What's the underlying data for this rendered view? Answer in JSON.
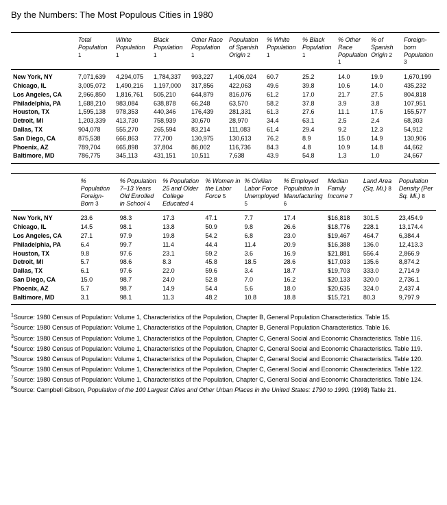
{
  "title": "By the Numbers: The Most Populous Cities in 1980",
  "table1": {
    "colWidths": [
      "95",
      "55",
      "55",
      "55",
      "55",
      "55",
      "52",
      "52",
      "48",
      "48",
      "55"
    ],
    "headers": [
      "",
      "Total Population <span class='sup-in-header'>1</span>",
      "White Population <span class='sup-in-header'>1</span>",
      "Black Population <span class='sup-in-header'>1</span>",
      "Other Race Population <span class='sup-in-header'>1</span>",
      "Population of Spanish Origin <span class='sup-in-header'>2</span>",
      "% White Population <span class='sup-in-header'>1</span>",
      "% Black Population <span class='sup-in-header'>1</span>",
      "% Other Race Population <span class='sup-in-header'>1</span>",
      "% of Spanish Origin <span class='sup-in-header'>2</span>",
      "Foreign-born Population <span class='sup-in-header'>3</span>"
    ],
    "rows": [
      [
        "New York, NY",
        "7,071,639",
        "4,294,075",
        "1,784,337",
        "993,227",
        "1,406,024",
        "60.7",
        "25.2",
        "14.0",
        "19.9",
        "1,670,199"
      ],
      [
        "Chicago, IL",
        "3,005,072",
        "1,490,216",
        "1,197,000",
        "317,856",
        "422,063",
        "49.6",
        "39.8",
        "10.6",
        "14.0",
        "435,232"
      ],
      [
        "Los Angeles, CA",
        "2,966,850",
        "1,816,761",
        "505,210",
        "644,879",
        "816,076",
        "61.2",
        "17.0",
        "21.7",
        "27.5",
        "804,818"
      ],
      [
        "Philadelphia, PA",
        "1,688,210",
        "983,084",
        "638,878",
        "66,248",
        "63,570",
        "58.2",
        "37.8",
        "3.9",
        "3.8",
        "107,951"
      ],
      [
        "Houston, TX",
        "1,595,138",
        "978,353",
        "440,346",
        "176,439",
        "281,331",
        "61.3",
        "27.6",
        "11.1",
        "17.6",
        "155,577"
      ],
      [
        "Detroit, MI",
        "1,203,339",
        "413,730",
        "758,939",
        "30,670",
        "28,970",
        "34.4",
        "63.1",
        "2.5",
        "2.4",
        "68,303"
      ],
      [
        "Dallas, TX",
        "904,078",
        "555,270",
        "265,594",
        "83,214",
        "111,083",
        "61.4",
        "29.4",
        "9.2",
        "12.3",
        "54,912"
      ],
      [
        "San Diego, CA",
        "875,538",
        "666,863",
        "77,700",
        "130,975",
        "130,613",
        "76.2",
        "8.9",
        "15.0",
        "14.9",
        "130,906"
      ],
      [
        "Phoenix, AZ",
        "789,704",
        "665,898",
        "37,804",
        "86,002",
        "116,736",
        "84.3",
        "4.8",
        "10.9",
        "14.8",
        "44,662"
      ],
      [
        "Baltimore, MD",
        "786,775",
        "345,113",
        "431,151",
        "10,511",
        "7,638",
        "43.9",
        "54.8",
        "1.3",
        "1.0",
        "24,667"
      ]
    ]
  },
  "table2": {
    "colWidths": [
      "95",
      "55",
      "60",
      "60",
      "55",
      "55",
      "62",
      "50",
      "50",
      "55"
    ],
    "headers": [
      "",
      "% Population Foreign-Born <span class='sup-in-header'>3</span>",
      "% Population 7–13 Years Old Enrolled in School <span class='sup-in-header'>4</span>",
      "% Population 25 and Older College Educated <span class='sup-in-header'>4</span>",
      "% Women in the Labor Force <span class='sup-in-header'>5</span>",
      "% Civilian Labor Force Unemployed <span class='sup-in-header'>5</span>",
      "% Employed Population in Manufacturing <span class='sup-in-header'>6</span>",
      "Median Family Income <span class='sup-in-header'>7</span>",
      "Land Area (Sq. Mi.) <span class='sup-in-header'>8</span>",
      "Population Density (Per Sq. Mi.) <span class='sup-in-header'>8</span>"
    ],
    "rows": [
      [
        "New York, NY",
        "23.6",
        "98.3",
        "17.3",
        "47.1",
        "7.7",
        "17.4",
        "$16,818",
        "301.5",
        "23,454.9"
      ],
      [
        "Chicago, IL",
        "14.5",
        "98.1",
        "13.8",
        "50.9",
        "9.8",
        "26.6",
        "$18,776",
        "228.1",
        "13,174.4"
      ],
      [
        "Los Angeles, CA",
        "27.1",
        "97.9",
        "19.8",
        "54.2",
        "6.8",
        "23.0",
        "$19,467",
        "464.7",
        "6,384.4"
      ],
      [
        "Philadelphia, PA",
        "6.4",
        "99.7",
        "11.4",
        "44.4",
        "11.4",
        "20.9",
        "$16,388",
        "136.0",
        "12,413.3"
      ],
      [
        "Houston, TX",
        "9.8",
        "97.6",
        "23.1",
        "59.2",
        "3.6",
        "16.9",
        "$21,881",
        "556.4",
        "2,866.9"
      ],
      [
        "Detroit, MI",
        "5.7",
        "98.6",
        "8.3",
        "45.8",
        "18.5",
        "28.6",
        "$17,033",
        "135.6",
        "8,874.2"
      ],
      [
        "Dallas, TX",
        "6.1",
        "97.6",
        "22.0",
        "59.6",
        "3.4",
        "18.7",
        "$19,703",
        "333.0",
        "2,714.9"
      ],
      [
        "San Diego, CA",
        "15.0",
        "98.7",
        "24.0",
        "52.8",
        "7.0",
        "16.2",
        "$20,133",
        "320.0",
        "2,736.1"
      ],
      [
        "Phoenix, AZ",
        "5.7",
        "98.7",
        "14.9",
        "54.4",
        "5.6",
        "18.0",
        "$20,635",
        "324.0",
        "2,437.4"
      ],
      [
        "Baltimore, MD",
        "3.1",
        "98.1",
        "11.3",
        "48.2",
        "10.8",
        "18.8",
        "$15,721",
        "80.3",
        "9,797.9"
      ]
    ]
  },
  "footnotes": [
    {
      "n": "1",
      "text": "Source: 1980 Census of Population: Volume 1, Characteristics of the Population, Chapter B, General Population Characteristics. Table 15."
    },
    {
      "n": "2",
      "text": "Source: 1980 Census of Population: Volume 1, Characteristics of the Population, Chapter B, General Population Characteristics. Table 16."
    },
    {
      "n": "3",
      "text": "Source: 1980 Census of Population: Volume 1, Characteristics of the Population, Chapter C, General Social and Economic Characteristics. Table 116."
    },
    {
      "n": "4",
      "text": "Source: 1980 Census of Population: Volume 1, Characteristics of the Population, Chapter C, General Social and Economic Characteristics. Table 119."
    },
    {
      "n": "5",
      "text": "Source: 1980 Census of Population: Volume 1, Characteristics of the Population, Chapter C, General Social and Economic Characteristics. Table 120."
    },
    {
      "n": "6",
      "text": "Source: 1980 Census of Population: Volume 1, Characteristics of the Population, Chapter C, General Social and Economic Characteristics. Table 122."
    },
    {
      "n": "7",
      "text": "Source: 1980 Census of Population: Volume 1, Characteristics of the Population, Chapter C, General Social and Economic Characteristics. Table 124."
    },
    {
      "n": "8",
      "text": "Source: Campbell Gibson, <span class='fn-title'>Population of the 100 Largest Cities and Other Urban Places in the United States: 1790 to 1990.</span> (1998) Table 21."
    }
  ]
}
